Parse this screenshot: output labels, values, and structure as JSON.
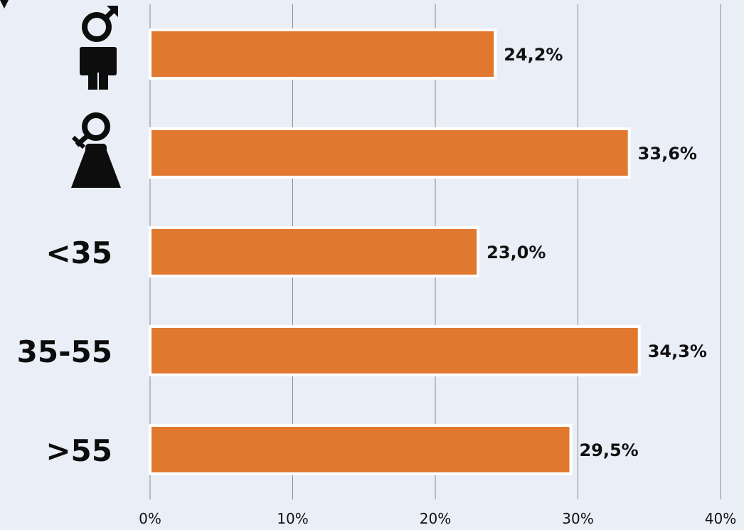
{
  "chart_data": {
    "type": "bar",
    "orientation": "horizontal",
    "categories": [
      "male-icon",
      "female-icon",
      "<35",
      "35-55",
      ">55"
    ],
    "values": [
      24.2,
      33.6,
      23.0,
      34.3,
      29.5
    ],
    "value_labels": [
      "24,2%",
      "33,6%",
      "23,0%",
      "34,3%",
      "29,5%"
    ],
    "xlim": [
      0,
      40
    ],
    "xticks": [
      0,
      10,
      20,
      30,
      40
    ],
    "xtick_labels": [
      "0%",
      "10%",
      "20%",
      "30%",
      "40%"
    ],
    "grid": true,
    "title": "",
    "xlabel": "",
    "ylabel": "",
    "colors": {
      "bar": "#e07830",
      "bar_outline": "#ffffff",
      "background": "#eaeef6",
      "grid": "#888888",
      "text": "#111111",
      "icons": "#0d0d0d"
    }
  }
}
